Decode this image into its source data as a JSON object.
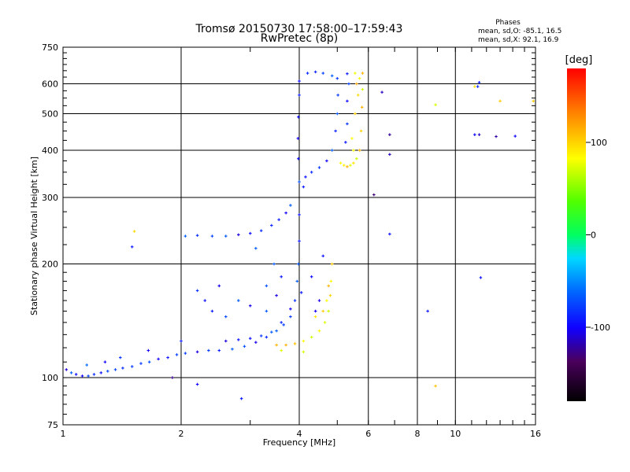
{
  "chart_data": {
    "type": "scatter",
    "title": "Tromsø 20150730 17:58:00–17:59:43",
    "subtitle": "RwPretec (8p)",
    "xlabel": "Frequency [MHz]",
    "ylabel": "Stationary phase Virtual Height [km]",
    "x_scale": "log",
    "y_scale": "log",
    "xlim": [
      1,
      16
    ],
    "ylim": [
      75,
      750
    ],
    "xticks": [
      "1",
      "2",
      "4",
      "6",
      "8",
      "10",
      "16"
    ],
    "yticks": [
      "75",
      "100",
      "200",
      "300",
      "400",
      "500",
      "600",
      "750"
    ],
    "grid": true,
    "phase_legend": {
      "title": "Phases",
      "line1": "mean, sd,O: -85.1, 16.5",
      "line2": "mean, sd,X:  92.1, 16.9"
    },
    "colorbar": {
      "label": "[deg]",
      "range": [
        -180,
        180
      ],
      "ticks": [
        "100",
        "0",
        "-100"
      ]
    },
    "series": [
      {
        "name": "O",
        "phase_deg": -85,
        "points": [
          [
            1.02,
            105
          ],
          [
            1.05,
            103
          ],
          [
            1.08,
            102
          ],
          [
            1.12,
            101
          ],
          [
            1.16,
            101
          ],
          [
            1.2,
            102
          ],
          [
            1.25,
            103
          ],
          [
            1.3,
            104
          ],
          [
            1.36,
            105
          ],
          [
            1.42,
            106
          ],
          [
            1.5,
            107
          ],
          [
            1.58,
            109
          ],
          [
            1.66,
            110
          ],
          [
            1.75,
            112
          ],
          [
            1.85,
            113
          ],
          [
            1.95,
            115
          ],
          [
            2.05,
            116
          ],
          [
            2.2,
            117
          ],
          [
            2.35,
            118
          ],
          [
            2.5,
            118
          ],
          [
            2.7,
            119
          ],
          [
            2.9,
            121
          ],
          [
            3.1,
            124
          ],
          [
            3.3,
            128
          ],
          [
            3.5,
            133
          ],
          [
            3.65,
            138
          ],
          [
            3.8,
            145
          ],
          [
            3.9,
            160
          ],
          [
            3.95,
            180
          ],
          [
            3.98,
            200
          ],
          [
            4.0,
            230
          ],
          [
            4.0,
            270
          ],
          [
            4.0,
            330
          ],
          [
            3.98,
            380
          ],
          [
            3.97,
            430
          ],
          [
            3.98,
            490
          ],
          [
            4.0,
            560
          ],
          [
            4.0,
            610
          ],
          [
            2.05,
            237
          ],
          [
            2.2,
            238
          ],
          [
            2.4,
            237
          ],
          [
            2.6,
            237
          ],
          [
            2.8,
            239
          ],
          [
            3.0,
            241
          ],
          [
            3.2,
            245
          ],
          [
            3.4,
            253
          ],
          [
            3.55,
            262
          ],
          [
            3.7,
            273
          ],
          [
            3.8,
            286
          ],
          [
            2.6,
            125
          ],
          [
            2.8,
            126
          ],
          [
            3.0,
            127
          ],
          [
            3.2,
            129
          ],
          [
            3.4,
            132
          ],
          [
            3.6,
            140
          ],
          [
            3.8,
            152
          ],
          [
            4.05,
            168
          ],
          [
            4.3,
            185
          ],
          [
            4.6,
            210
          ],
          [
            4.1,
            320
          ],
          [
            4.15,
            340
          ],
          [
            4.3,
            350
          ],
          [
            4.5,
            360
          ],
          [
            4.7,
            375
          ],
          [
            4.85,
            400
          ],
          [
            4.95,
            450
          ],
          [
            5.0,
            500
          ],
          [
            5.02,
            560
          ],
          [
            5.0,
            620
          ],
          [
            4.2,
            640
          ],
          [
            4.4,
            645
          ],
          [
            4.6,
            640
          ],
          [
            4.85,
            630
          ],
          [
            5.3,
            638
          ],
          [
            5.35,
            600
          ],
          [
            5.3,
            540
          ],
          [
            5.3,
            470
          ],
          [
            5.25,
            420
          ],
          [
            2.3,
            160
          ],
          [
            2.4,
            150
          ],
          [
            2.6,
            145
          ],
          [
            2.8,
            160
          ],
          [
            3.0,
            155
          ],
          [
            3.3,
            175
          ],
          [
            3.5,
            165
          ],
          [
            3.6,
            185
          ],
          [
            4.4,
            150
          ],
          [
            4.5,
            160
          ],
          [
            1.15,
            108
          ],
          [
            1.28,
            110
          ],
          [
            1.4,
            113
          ],
          [
            1.65,
            118
          ],
          [
            2.0,
            125
          ],
          [
            2.2,
            170
          ],
          [
            2.5,
            175
          ],
          [
            3.1,
            220
          ],
          [
            3.3,
            150
          ],
          [
            3.45,
            200
          ]
        ]
      },
      {
        "name": "X",
        "phase_deg": 92,
        "points": [
          [
            3.5,
            122
          ],
          [
            3.7,
            122
          ],
          [
            3.9,
            123
          ],
          [
            4.1,
            125
          ],
          [
            4.3,
            128
          ],
          [
            4.5,
            133
          ],
          [
            4.65,
            140
          ],
          [
            4.75,
            150
          ],
          [
            4.8,
            165
          ],
          [
            4.82,
            180
          ],
          [
            4.85,
            200
          ],
          [
            4.4,
            145
          ],
          [
            4.6,
            150
          ],
          [
            4.7,
            160
          ],
          [
            4.75,
            175
          ],
          [
            5.1,
            370
          ],
          [
            5.2,
            365
          ],
          [
            5.3,
            362
          ],
          [
            5.4,
            365
          ],
          [
            5.5,
            370
          ],
          [
            5.6,
            380
          ],
          [
            5.7,
            400
          ],
          [
            5.75,
            450
          ],
          [
            5.78,
            520
          ],
          [
            5.8,
            580
          ],
          [
            5.8,
            640
          ],
          [
            5.55,
            640
          ],
          [
            5.6,
            600
          ],
          [
            5.65,
            560
          ],
          [
            5.55,
            500
          ],
          [
            5.45,
            430
          ],
          [
            5.5,
            400
          ],
          [
            5.7,
            620
          ],
          [
            1.52,
            244
          ],
          [
            8.9,
            528
          ],
          [
            8.9,
            95
          ],
          [
            13.0,
            540
          ],
          [
            15.8,
            540
          ],
          [
            11.2,
            590
          ],
          [
            4.1,
            117
          ],
          [
            3.6,
            118
          ]
        ]
      },
      {
        "name": "scatter",
        "phase_deg": -110,
        "points": [
          [
            1.5,
            222
          ],
          [
            1.9,
            100
          ],
          [
            2.2,
            96
          ],
          [
            2.85,
            88
          ],
          [
            6.2,
            305
          ],
          [
            6.8,
            240
          ],
          [
            8.5,
            150
          ],
          [
            11.4,
            590
          ],
          [
            11.5,
            605
          ],
          [
            11.2,
            440
          ],
          [
            11.5,
            440
          ],
          [
            12.7,
            435
          ],
          [
            14.2,
            436
          ],
          [
            11.6,
            184
          ],
          [
            6.5,
            570
          ],
          [
            6.8,
            440
          ],
          [
            6.8,
            390
          ]
        ]
      }
    ]
  }
}
